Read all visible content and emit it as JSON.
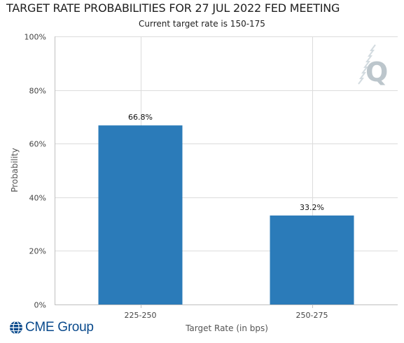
{
  "header": {
    "title": "TARGET RATE PROBABILITIES FOR 27 JUL 2022 FED MEETING",
    "subtitle": "Current target rate is 150-175"
  },
  "footer": {
    "logo_text": "CME Group"
  },
  "colors": {
    "bar": "#2b7bb9",
    "grid": "#dcdcdc",
    "axis": "#c0c0c0",
    "logo": "#0a4a8c",
    "watermark": "#bcc6cc"
  },
  "icons": {
    "watermark": "quikstrike-q-icon",
    "logo": "cme-globe-icon"
  },
  "chart_data": {
    "type": "bar",
    "title": "TARGET RATE PROBABILITIES FOR 27 JUL 2022 FED MEETING",
    "subtitle": "Current target rate is 150-175",
    "categories": [
      "225-250",
      "250-275"
    ],
    "values": [
      66.8,
      33.2
    ],
    "data_labels": [
      "66.8%",
      "33.2%"
    ],
    "xlabel": "Target Rate (in bps)",
    "ylabel": "Probability",
    "ylim": [
      0,
      100
    ],
    "yticks": [
      0,
      20,
      40,
      60,
      80,
      100
    ],
    "ytick_labels": [
      "0%",
      "20%",
      "40%",
      "60%",
      "80%",
      "100%"
    ],
    "grid": true,
    "legend": "none"
  }
}
